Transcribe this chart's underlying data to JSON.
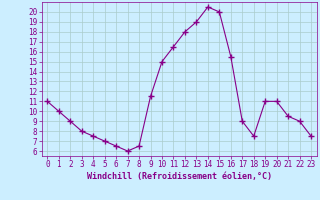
{
  "x": [
    0,
    1,
    2,
    3,
    4,
    5,
    6,
    7,
    8,
    9,
    10,
    11,
    12,
    13,
    14,
    15,
    16,
    17,
    18,
    19,
    20,
    21,
    22,
    23
  ],
  "y": [
    11,
    10,
    9,
    8,
    7.5,
    7,
    6.5,
    6,
    6.5,
    11.5,
    15,
    16.5,
    18,
    19,
    20.5,
    20,
    15.5,
    9,
    7.5,
    11,
    11,
    9.5,
    9,
    7.5
  ],
  "line_color": "#880088",
  "marker": "+",
  "marker_size": 4,
  "bg_color": "#cceeff",
  "grid_color": "#aacccc",
  "xlabel": "Windchill (Refroidissement éolien,°C)",
  "xlabel_color": "#880088",
  "tick_color": "#880088",
  "ylim": [
    5.5,
    21.0
  ],
  "xlim": [
    -0.5,
    23.5
  ],
  "yticks": [
    6,
    7,
    8,
    9,
    10,
    11,
    12,
    13,
    14,
    15,
    16,
    17,
    18,
    19,
    20
  ],
  "xticks": [
    0,
    1,
    2,
    3,
    4,
    5,
    6,
    7,
    8,
    9,
    10,
    11,
    12,
    13,
    14,
    15,
    16,
    17,
    18,
    19,
    20,
    21,
    22,
    23
  ],
  "tick_fontsize": 5.5,
  "xlabel_fontsize": 6.0
}
